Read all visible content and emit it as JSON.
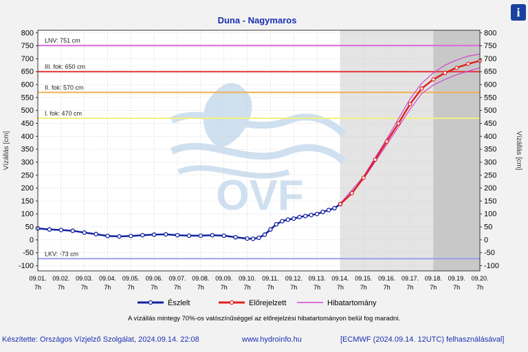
{
  "header": {
    "title": "Duna - Nagymaros",
    "info_label": "i"
  },
  "chart_data": {
    "type": "line",
    "title": "Duna - Nagymaros",
    "ylabel_left": "Vízállás [cm]",
    "ylabel_right": "Vízállás [cm]",
    "ylim": [
      -120,
      810
    ],
    "y_ticks": [
      -100,
      -50,
      0,
      50,
      100,
      150,
      200,
      250,
      300,
      350,
      400,
      450,
      500,
      550,
      600,
      650,
      700,
      750,
      800
    ],
    "x_unit": "day index (09.01. 7h = 0)",
    "x_range": [
      0,
      19
    ],
    "x_ticks": [
      {
        "day": "09.01.",
        "hour": "7h"
      },
      {
        "day": "09.02.",
        "hour": "7h"
      },
      {
        "day": "09.03.",
        "hour": "7h"
      },
      {
        "day": "09.04.",
        "hour": "7h"
      },
      {
        "day": "09.05.",
        "hour": "7h"
      },
      {
        "day": "09.06.",
        "hour": "7h"
      },
      {
        "day": "09.07.",
        "hour": "7h"
      },
      {
        "day": "09.08.",
        "hour": "7h"
      },
      {
        "day": "09.09.",
        "hour": "7h"
      },
      {
        "day": "09.10.",
        "hour": "7h"
      },
      {
        "day": "09.11.",
        "hour": "7h"
      },
      {
        "day": "09.12.",
        "hour": "7h"
      },
      {
        "day": "09.13.",
        "hour": "7h"
      },
      {
        "day": "09.14.",
        "hour": "7h"
      },
      {
        "day": "09.15.",
        "hour": "7h"
      },
      {
        "day": "09.16.",
        "hour": "7h"
      },
      {
        "day": "09.17.",
        "hour": "7h"
      },
      {
        "day": "09.18.",
        "hour": "7h"
      },
      {
        "day": "09.19.",
        "hour": "7h"
      },
      {
        "day": "09.20.",
        "hour": "7h"
      }
    ],
    "forecast_start": 13,
    "forecast_dark_start": 17,
    "thresholds": [
      {
        "label": "LNV: 751 cm",
        "value": 751,
        "color": "#dd66dd"
      },
      {
        "label": "III. fok: 650 cm",
        "value": 650,
        "color": "#e83030"
      },
      {
        "label": "II. fok: 570 cm",
        "value": 570,
        "color": "#f0b050"
      },
      {
        "label": "I. fok: 470 cm",
        "value": 470,
        "color": "#f4f07a"
      },
      {
        "label": "LKV: -73 cm",
        "value": -73,
        "color": "#9aa0ee"
      }
    ],
    "series": [
      {
        "name": "Észlelt",
        "color": "#1020a0",
        "x": [
          0,
          0.5,
          1,
          1.5,
          2,
          2.5,
          3,
          3.5,
          4,
          4.5,
          5,
          5.5,
          6,
          6.5,
          7,
          7.5,
          8,
          8.5,
          9,
          9.25,
          9.5,
          9.75,
          10,
          10.25,
          10.5,
          10.75,
          11,
          11.25,
          11.5,
          11.75,
          12,
          12.25,
          12.5,
          12.75,
          13
        ],
        "y": [
          44,
          40,
          38,
          35,
          28,
          22,
          15,
          13,
          15,
          18,
          20,
          21,
          18,
          16,
          16,
          18,
          16,
          10,
          5,
          4,
          8,
          20,
          40,
          60,
          72,
          78,
          82,
          88,
          92,
          96,
          100,
          108,
          115,
          122,
          138
        ]
      },
      {
        "name": "Előrejelzett",
        "color": "#e02020",
        "x": [
          13,
          13.5,
          14,
          14.5,
          15,
          15.5,
          16,
          16.5,
          17,
          17.5,
          18,
          18.5,
          19
        ],
        "y": [
          138,
          180,
          240,
          310,
          380,
          450,
          525,
          585,
          620,
          645,
          665,
          680,
          692
        ]
      },
      {
        "name": "Hibatartomány",
        "color": "#cc44cc",
        "x": [
          13,
          14,
          15,
          16,
          16.5,
          17,
          17.5,
          18,
          18.5,
          19
        ],
        "upper": [
          140,
          245,
          390,
          545,
          605,
          645,
          675,
          695,
          710,
          718
        ],
        "lower": [
          136,
          235,
          368,
          505,
          565,
          598,
          620,
          638,
          652,
          665
        ]
      }
    ]
  },
  "note": "A vízállás mintegy 70%-os valószínűséggel az előrejelzési hibatartományon belül fog maradni.",
  "footer": {
    "left": "Készítette: Országos Vízjelző Szolgálat, 2024.09.14. 22:08",
    "center": "www.hydroinfo.hu",
    "right": "[ECMWF (2024.09.14. 12UTC) felhasználásával]"
  },
  "watermark": {
    "text": "OVF",
    "color": "#cfe0f0"
  }
}
